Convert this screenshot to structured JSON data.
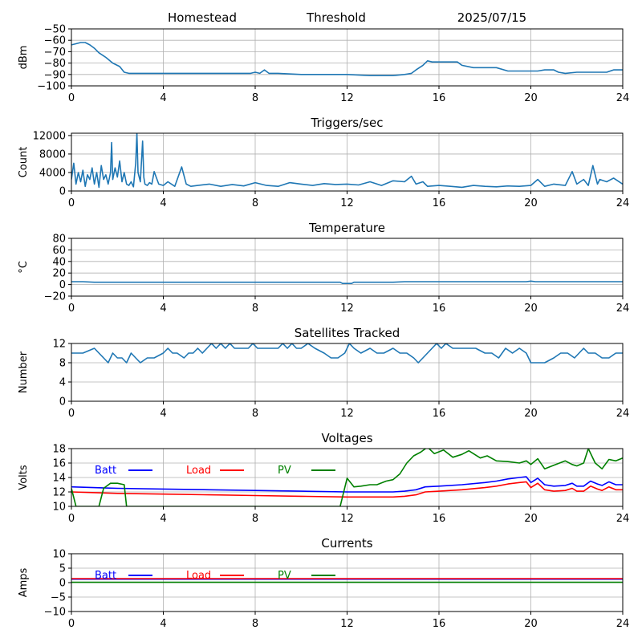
{
  "header": {
    "left": "Homestead",
    "center": "Threshold",
    "right": "2025/07/15"
  },
  "colors": {
    "default": "#1f77b4",
    "batt": "#0000ff",
    "load": "#ff0000",
    "pv": "#008000",
    "grid": "#b0b0b0"
  },
  "chart_data": [
    {
      "type": "line",
      "title": "",
      "xlabel": "",
      "ylabel": "dBm",
      "xlim": [
        0,
        24
      ],
      "ylim": [
        -100,
        -50
      ],
      "xticks": [
        0,
        4,
        8,
        12,
        16,
        20,
        24
      ],
      "yticks": [
        -100,
        -90,
        -80,
        -70,
        -60,
        -50
      ],
      "grid": true,
      "series": [
        {
          "color": "default",
          "x": [
            0,
            0.2,
            0.4,
            0.6,
            0.8,
            1.0,
            1.2,
            1.5,
            1.8,
            2.1,
            2.3,
            2.5,
            3,
            4,
            5,
            6,
            7,
            7.8,
            8.0,
            8.2,
            8.4,
            8.6,
            9,
            10,
            11,
            12,
            13,
            14,
            14.5,
            14.8,
            15.0,
            15.3,
            15.5,
            15.7,
            16.0,
            16.5,
            16.8,
            17.0,
            17.5,
            18,
            18.5,
            19,
            19.5,
            20,
            20.3,
            20.6,
            21,
            21.2,
            21.5,
            22,
            22.5,
            23,
            23.3,
            23.6,
            24
          ],
          "values": [
            -64,
            -63,
            -62,
            -62,
            -64,
            -67,
            -71,
            -75,
            -80,
            -83,
            -88,
            -89,
            -89,
            -89,
            -89,
            -89,
            -89,
            -89,
            -88,
            -89,
            -86,
            -89,
            -89,
            -90,
            -90,
            -90,
            -91,
            -91,
            -90,
            -89,
            -86,
            -82,
            -78,
            -79,
            -79,
            -79,
            -79,
            -82,
            -84,
            -84,
            -84,
            -87,
            -87,
            -87,
            -87,
            -86,
            -86,
            -88,
            -89,
            -88,
            -88,
            -88,
            -88,
            -86,
            -86
          ]
        }
      ]
    },
    {
      "type": "line",
      "title": "Triggers/sec",
      "xlabel": "",
      "ylabel": "Count",
      "xlim": [
        0,
        24
      ],
      "ylim": [
        0,
        12500
      ],
      "xticks": [
        0,
        4,
        8,
        12,
        16,
        20,
        24
      ],
      "yticks": [
        0,
        4000,
        8000,
        12000
      ],
      "grid": true,
      "series": [
        {
          "color": "default",
          "x": [
            0,
            0.1,
            0.2,
            0.3,
            0.4,
            0.5,
            0.6,
            0.7,
            0.8,
            0.9,
            1.0,
            1.1,
            1.2,
            1.3,
            1.4,
            1.5,
            1.6,
            1.7,
            1.75,
            1.8,
            1.9,
            2.0,
            2.1,
            2.2,
            2.3,
            2.4,
            2.5,
            2.6,
            2.7,
            2.8,
            2.85,
            2.9,
            3.0,
            3.1,
            3.15,
            3.2,
            3.3,
            3.4,
            3.5,
            3.6,
            3.8,
            4.0,
            4.2,
            4.5,
            4.8,
            5.0,
            5.2,
            5.5,
            6,
            6.5,
            7,
            7.5,
            8,
            8.5,
            9,
            9.5,
            10,
            10.5,
            11,
            11.5,
            12,
            12.5,
            13,
            13.5,
            14,
            14.5,
            14.8,
            15,
            15.3,
            15.5,
            16,
            16.5,
            17,
            17.5,
            18,
            18.5,
            19,
            19.5,
            20,
            20.3,
            20.6,
            21,
            21.5,
            21.8,
            22,
            22.3,
            22.5,
            22.7,
            22.9,
            23,
            23.3,
            23.6,
            24
          ],
          "values": [
            2500,
            6000,
            1500,
            4000,
            2000,
            4500,
            1000,
            3500,
            2500,
            5000,
            1500,
            4000,
            800,
            5500,
            2500,
            3500,
            1500,
            4000,
            10500,
            2500,
            5000,
            3000,
            6500,
            2000,
            4000,
            1500,
            1200,
            2000,
            900,
            6000,
            12500,
            4000,
            2000,
            10800,
            3000,
            1500,
            1200,
            1800,
            1500,
            4200,
            1500,
            1200,
            2000,
            1000,
            5200,
            1500,
            1000,
            1200,
            1500,
            1000,
            1400,
            1100,
            1800,
            1200,
            1000,
            1800,
            1500,
            1200,
            1600,
            1400,
            1500,
            1300,
            2000,
            1200,
            2200,
            2000,
            3200,
            1500,
            2000,
            1000,
            1200,
            1000,
            800,
            1200,
            1000,
            900,
            1100,
            1000,
            1200,
            2500,
            1000,
            1500,
            1200,
            4200,
            1500,
            2500,
            1200,
            5500,
            1500,
            2500,
            2000,
            2800,
            1500
          ]
        }
      ]
    },
    {
      "type": "line",
      "title": "Temperature",
      "xlabel": "",
      "ylabel": "°C",
      "xlim": [
        0,
        24
      ],
      "ylim": [
        -20,
        80
      ],
      "xticks": [
        0,
        4,
        8,
        12,
        16,
        20,
        24
      ],
      "yticks": [
        -20,
        0,
        20,
        40,
        60,
        80
      ],
      "grid": true,
      "series": [
        {
          "color": "default",
          "x": [
            0,
            0.5,
            1.0,
            2,
            4,
            6,
            8,
            10,
            11.7,
            11.8,
            12.2,
            12.3,
            14,
            14.5,
            16,
            18,
            19.8,
            20,
            20.2,
            22,
            24
          ],
          "values": [
            5,
            5,
            4,
            4,
            4,
            4,
            4,
            4,
            4,
            2,
            2,
            4,
            4,
            5,
            5,
            5,
            5,
            6,
            5,
            5,
            5
          ]
        }
      ]
    },
    {
      "type": "line",
      "title": "Satellites Tracked",
      "xlabel": "",
      "ylabel": "Number",
      "xlim": [
        0,
        24
      ],
      "ylim": [
        0,
        12
      ],
      "xticks": [
        0,
        4,
        8,
        12,
        16,
        20,
        24
      ],
      "yticks": [
        0,
        4,
        8,
        12
      ],
      "grid": true,
      "series": [
        {
          "color": "default",
          "x": [
            0,
            0.5,
            1.0,
            1.2,
            1.4,
            1.6,
            1.8,
            2.0,
            2.2,
            2.4,
            2.6,
            2.8,
            3.0,
            3.3,
            3.6,
            4.0,
            4.2,
            4.4,
            4.6,
            4.9,
            5.1,
            5.3,
            5.5,
            5.7,
            5.9,
            6.1,
            6.3,
            6.5,
            6.7,
            6.9,
            7.1,
            7.3,
            7.5,
            7.7,
            7.9,
            8.1,
            8.3,
            8.6,
            9.0,
            9.2,
            9.4,
            9.6,
            9.8,
            10,
            10.3,
            10.6,
            11,
            11.3,
            11.6,
            11.9,
            12.1,
            12.3,
            12.6,
            13,
            13.3,
            13.6,
            14,
            14.3,
            14.6,
            14.9,
            15.1,
            15.3,
            15.5,
            15.7,
            15.9,
            16.1,
            16.3,
            16.6,
            17,
            17.3,
            17.6,
            18,
            18.3,
            18.6,
            18.9,
            19.2,
            19.5,
            19.8,
            20.0,
            20.3,
            20.6,
            21,
            21.3,
            21.6,
            21.9,
            22.1,
            22.3,
            22.5,
            22.8,
            23.1,
            23.4,
            23.7,
            24
          ],
          "values": [
            10,
            10,
            11,
            10,
            9,
            8,
            10,
            9,
            9,
            8,
            10,
            9,
            8,
            9,
            9,
            10,
            11,
            10,
            10,
            9,
            10,
            10,
            11,
            10,
            11,
            12,
            11,
            12,
            11,
            12,
            11,
            11,
            11,
            11,
            12,
            11,
            11,
            11,
            11,
            12,
            11,
            12,
            11,
            11,
            12,
            11,
            10,
            9,
            9,
            10,
            12,
            11,
            10,
            11,
            10,
            10,
            11,
            10,
            10,
            9,
            8,
            9,
            10,
            11,
            12,
            11,
            12,
            11,
            11,
            11,
            11,
            10,
            10,
            9,
            11,
            10,
            11,
            10,
            8,
            8,
            8,
            9,
            10,
            10,
            9,
            10,
            11,
            10,
            10,
            9,
            9,
            10,
            10
          ]
        }
      ]
    },
    {
      "type": "line",
      "title": "Voltages",
      "xlabel": "",
      "ylabel": "Volts",
      "xlim": [
        0,
        24
      ],
      "ylim": [
        10,
        18
      ],
      "xticks": [
        0,
        4,
        8,
        12,
        16,
        20,
        24
      ],
      "yticks": [
        10,
        12,
        14,
        16,
        18
      ],
      "grid": true,
      "legend": "top-left",
      "series": [
        {
          "name": "Batt",
          "color": "batt",
          "x": [
            0,
            2,
            4,
            6,
            8,
            10,
            12,
            13,
            14,
            14.5,
            15,
            15.4,
            16,
            17,
            18,
            18.5,
            19,
            19.5,
            19.8,
            20,
            20.3,
            20.6,
            21,
            21.5,
            21.8,
            22,
            22.3,
            22.6,
            22.9,
            23.1,
            23.4,
            23.7,
            24
          ],
          "values": [
            12.7,
            12.5,
            12.4,
            12.3,
            12.2,
            12.1,
            12.0,
            12.0,
            12.0,
            12.1,
            12.3,
            12.7,
            12.8,
            13.0,
            13.3,
            13.5,
            13.8,
            14.0,
            14.1,
            13.3,
            13.9,
            13.0,
            12.8,
            12.9,
            13.2,
            12.8,
            12.8,
            13.5,
            13.1,
            12.9,
            13.4,
            13.0,
            13.0
          ]
        },
        {
          "name": "Load",
          "color": "load",
          "x": [
            0,
            2,
            4,
            6,
            8,
            10,
            12,
            13,
            14,
            14.5,
            15,
            15.4,
            16,
            17,
            18,
            18.5,
            19,
            19.5,
            19.8,
            20,
            20.3,
            20.6,
            21,
            21.5,
            21.8,
            22,
            22.3,
            22.6,
            22.9,
            23.1,
            23.4,
            23.7,
            24
          ],
          "values": [
            12.0,
            11.8,
            11.7,
            11.6,
            11.5,
            11.4,
            11.3,
            11.3,
            11.3,
            11.4,
            11.6,
            12.0,
            12.1,
            12.3,
            12.6,
            12.8,
            13.1,
            13.3,
            13.4,
            12.6,
            13.2,
            12.3,
            12.1,
            12.2,
            12.5,
            12.1,
            12.1,
            12.8,
            12.4,
            12.2,
            12.7,
            12.3,
            12.3
          ]
        },
        {
          "name": "PV",
          "color": "pv",
          "x": [
            0,
            0.2,
            1.2,
            1.4,
            1.7,
            2.0,
            2.3,
            2.4,
            11.7,
            12.0,
            12.3,
            12.6,
            13,
            13.3,
            13.7,
            14,
            14.3,
            14.6,
            14.9,
            15.2,
            15.5,
            15.8,
            16.2,
            16.6,
            17,
            17.3,
            17.8,
            18.1,
            18.5,
            19,
            19.5,
            19.8,
            20,
            20.3,
            20.6,
            21,
            21.5,
            21.8,
            22,
            22.3,
            22.5,
            22.8,
            23.1,
            23.4,
            23.7,
            24
          ],
          "values": [
            12.5,
            10.0,
            10.0,
            12.5,
            13.2,
            13.2,
            13.0,
            10.0,
            10.0,
            13.9,
            12.7,
            12.8,
            13.0,
            13.0,
            13.5,
            13.7,
            14.5,
            16.0,
            17.0,
            17.5,
            18.2,
            17.3,
            17.8,
            16.8,
            17.2,
            17.7,
            16.7,
            17.0,
            16.3,
            16.2,
            16.0,
            16.3,
            15.8,
            16.6,
            15.2,
            15.7,
            16.3,
            15.8,
            15.6,
            16.0,
            18.0,
            16.0,
            15.2,
            16.5,
            16.3,
            16.7
          ]
        }
      ]
    },
    {
      "type": "line",
      "title": "Currents",
      "xlabel": "",
      "ylabel": "Amps",
      "xlim": [
        0,
        24
      ],
      "ylim": [
        -10,
        10
      ],
      "xticks": [
        0,
        4,
        8,
        12,
        16,
        20,
        24
      ],
      "yticks": [
        -10,
        -5,
        0,
        5,
        10
      ],
      "grid": true,
      "legend": "top-left",
      "series": [
        {
          "name": "Batt",
          "color": "batt",
          "x": [
            0,
            24
          ],
          "values": [
            1.2,
            1.2
          ]
        },
        {
          "name": "Load",
          "color": "load",
          "x": [
            0,
            24
          ],
          "values": [
            1.4,
            1.4
          ]
        },
        {
          "name": "PV",
          "color": "pv",
          "x": [
            0,
            24
          ],
          "values": [
            0.1,
            0.1
          ]
        }
      ]
    }
  ]
}
